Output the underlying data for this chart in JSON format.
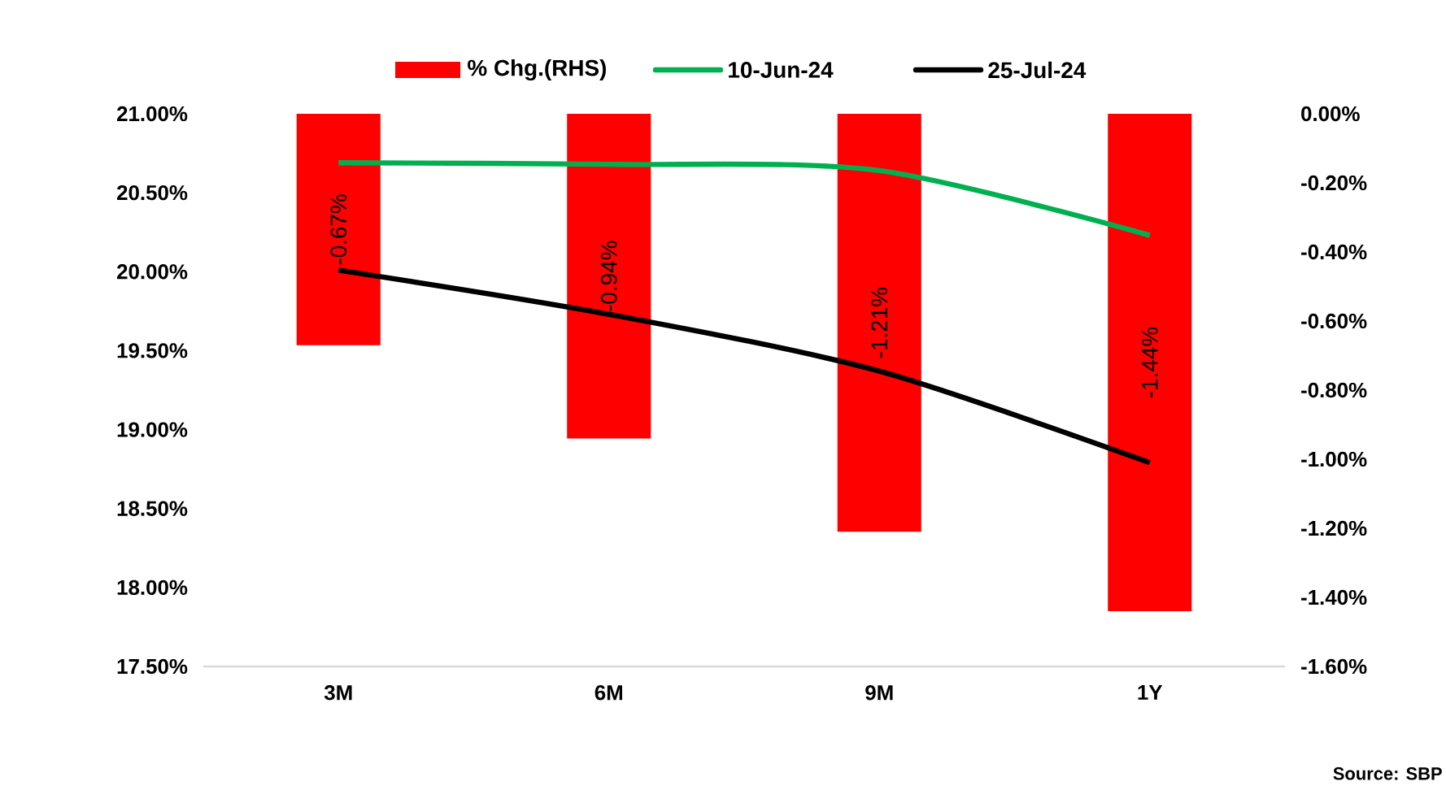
{
  "chart_data": {
    "type": "line",
    "categories": [
      "3M",
      "6M",
      "9M",
      "1Y"
    ],
    "series": [
      {
        "name": "% Chg.(RHS)",
        "type": "bar",
        "axis": "y2",
        "color": "#ff0000",
        "values": [
          -0.67,
          -0.94,
          -1.21,
          -1.44
        ],
        "value_labels": [
          "-0.67%",
          "-0.94%",
          "-1.21%",
          "-1.44%"
        ]
      },
      {
        "name": "10-Jun-24",
        "color": "#00b050",
        "values": [
          20.69,
          20.68,
          20.64,
          20.23
        ]
      },
      {
        "name": "25-Jul-24",
        "color": "#000000",
        "values": [
          20.01,
          19.73,
          19.37,
          18.79
        ]
      }
    ],
    "ylim": [
      17.5,
      21.0
    ],
    "yticks": [
      {
        "value": 17.5,
        "label": "17.50%"
      },
      {
        "value": 18.0,
        "label": "18.00%"
      },
      {
        "value": 18.5,
        "label": "18.50%"
      },
      {
        "value": 19.0,
        "label": "19.00%"
      },
      {
        "value": 19.5,
        "label": "19.50%"
      },
      {
        "value": 20.0,
        "label": "20.00%"
      },
      {
        "value": 20.5,
        "label": "20.50%"
      },
      {
        "value": 21.0,
        "label": "21.00%"
      }
    ],
    "y2lim": [
      -1.6,
      0.0
    ],
    "y2ticks": [
      {
        "value": -1.6,
        "label": "-1.60%"
      },
      {
        "value": -1.4,
        "label": "-1.40%"
      },
      {
        "value": -1.2,
        "label": "-1.20%"
      },
      {
        "value": -1.0,
        "label": "-1.00%"
      },
      {
        "value": -0.8,
        "label": "-0.80%"
      },
      {
        "value": -0.6,
        "label": "-0.60%"
      },
      {
        "value": -0.4,
        "label": "-0.40%"
      },
      {
        "value": -0.2,
        "label": "-0.20%"
      },
      {
        "value": 0.0,
        "label": "0.00%"
      }
    ],
    "legend": "top",
    "annotations": [
      "Source: SBP"
    ]
  }
}
